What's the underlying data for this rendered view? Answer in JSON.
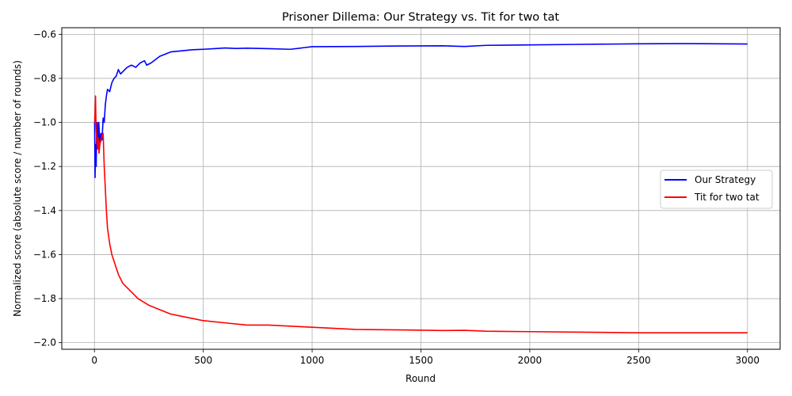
{
  "chart_data": {
    "type": "line",
    "title": "Prisoner Dillema: Our Strategy vs. Tit for two tat",
    "xlabel": "Round",
    "ylabel": "Normalized score (absolute score / number of rounds)",
    "xlim": [
      -150,
      3150
    ],
    "ylim": [
      -2.03,
      -0.57
    ],
    "xticks": [
      0,
      500,
      1000,
      1500,
      2000,
      2500,
      3000
    ],
    "xtick_labels": [
      "0",
      "500",
      "1000",
      "1500",
      "2000",
      "2500",
      "3000"
    ],
    "yticks": [
      -2.0,
      -1.8,
      -1.6,
      -1.4,
      -1.2,
      -1.0,
      -0.8,
      -0.6
    ],
    "ytick_labels": [
      "−2.0",
      "−1.8",
      "−1.6",
      "−1.4",
      "−1.2",
      "−1.0",
      "−0.8",
      "−0.6"
    ],
    "grid": true,
    "legend_position": "center-right",
    "series": [
      {
        "name": "Our Strategy",
        "color": "#0000ff",
        "x": [
          1,
          3,
          5,
          8,
          10,
          13,
          16,
          20,
          25,
          30,
          35,
          40,
          45,
          50,
          55,
          60,
          70,
          80,
          90,
          100,
          110,
          120,
          130,
          150,
          170,
          190,
          210,
          230,
          240,
          260,
          300,
          350,
          400,
          450,
          500,
          550,
          600,
          650,
          700,
          800,
          900,
          1000,
          1200,
          1400,
          1600,
          1700,
          1800,
          2000,
          2200,
          2500,
          2700,
          3000
        ],
        "y": [
          -1.0,
          -1.25,
          -1.1,
          -1.2,
          -1.05,
          -1.0,
          -1.12,
          -1.0,
          -1.1,
          -1.05,
          -1.08,
          -0.98,
          -1.0,
          -0.92,
          -0.88,
          -0.85,
          -0.86,
          -0.82,
          -0.8,
          -0.79,
          -0.76,
          -0.78,
          -0.77,
          -0.75,
          -0.74,
          -0.75,
          -0.73,
          -0.72,
          -0.74,
          -0.73,
          -0.7,
          -0.68,
          -0.675,
          -0.67,
          -0.668,
          -0.665,
          -0.662,
          -0.664,
          -0.663,
          -0.665,
          -0.668,
          -0.656,
          -0.655,
          -0.653,
          -0.652,
          -0.655,
          -0.65,
          -0.648,
          -0.646,
          -0.643,
          -0.642,
          -0.644
        ]
      },
      {
        "name": "Tit for two tat",
        "color": "#ff0000",
        "x": [
          1,
          3,
          5,
          7,
          9,
          12,
          15,
          18,
          21,
          25,
          30,
          35,
          40,
          45,
          50,
          55,
          60,
          70,
          80,
          90,
          100,
          110,
          120,
          130,
          150,
          170,
          200,
          250,
          300,
          350,
          400,
          450,
          500,
          600,
          700,
          800,
          900,
          1000,
          1200,
          1400,
          1600,
          1700,
          1800,
          2000,
          2200,
          2500,
          2700,
          3000
        ],
        "y": [
          -1.0,
          -0.95,
          -0.88,
          -1.0,
          -1.05,
          -1.1,
          -1.12,
          -1.07,
          -1.14,
          -1.1,
          -1.08,
          -1.06,
          -1.05,
          -1.2,
          -1.3,
          -1.4,
          -1.48,
          -1.55,
          -1.6,
          -1.63,
          -1.66,
          -1.69,
          -1.71,
          -1.73,
          -1.75,
          -1.77,
          -1.8,
          -1.83,
          -1.85,
          -1.87,
          -1.88,
          -1.89,
          -1.9,
          -1.91,
          -1.92,
          -1.92,
          -1.925,
          -1.93,
          -1.94,
          -1.942,
          -1.945,
          -1.944,
          -1.948,
          -1.95,
          -1.952,
          -1.955,
          -1.955,
          -1.955
        ]
      }
    ]
  }
}
